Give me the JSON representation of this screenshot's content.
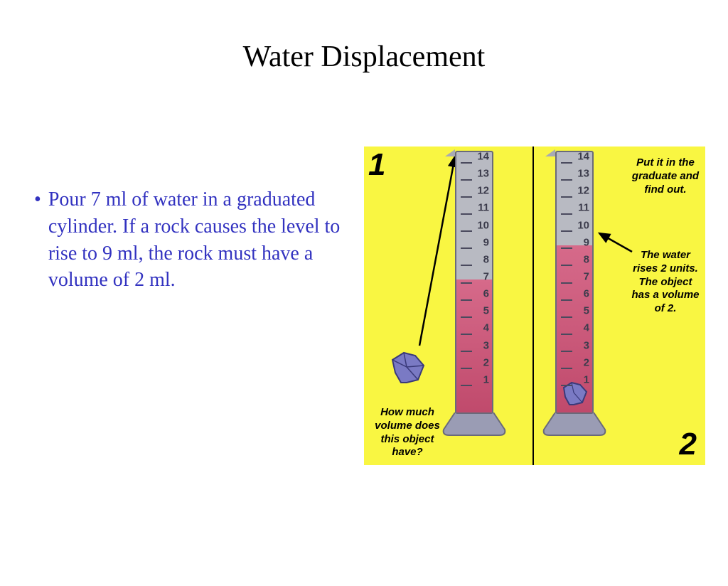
{
  "title": "Water Displacement",
  "bullet": "Pour 7 ml of water in a graduated cylinder.  If a rock causes the level to rise to 9 ml, the rock must have a volume of 2 ml.",
  "diagram": {
    "background_color": "#f9f642",
    "divider_color": "#000000",
    "cylinder": {
      "fill_color": "#b8bac2",
      "border_color": "#6a6a7a",
      "water_color_top": "#d66a8a",
      "water_color_bottom": "#c04a6c",
      "base_color": "#9a9cb4",
      "tick_color": "#4a4a5e",
      "tick_label_color": "#3c3c4c",
      "ticks": [
        14,
        13,
        12,
        11,
        10,
        9,
        8,
        7,
        6,
        5,
        4,
        3,
        2,
        1
      ],
      "tick_fontsize": 15
    },
    "rock": {
      "fill_color": "#7a7ac4",
      "stroke_color": "#3a3a7a"
    },
    "arrow_color": "#000000",
    "panel1": {
      "number": "1",
      "initial_water_level": 7,
      "caption": "How much volume does this object have?"
    },
    "panel2": {
      "number": "2",
      "final_water_level": 9,
      "caption_top": "Put it in the graduate and find out.",
      "caption_result": "The water rises 2 units. The object has a volume of 2."
    },
    "text_style": {
      "font_family": "Arial",
      "font_size": 15,
      "font_weight": "bold",
      "font_style": "italic",
      "color": "#000000"
    },
    "number_style": {
      "font_family": "Arial",
      "font_size": 44,
      "font_weight": 900,
      "font_style": "italic",
      "color": "#000000"
    }
  },
  "colors": {
    "title_color": "#000000",
    "body_text_color": "#3232c0",
    "page_background": "#ffffff"
  },
  "typography": {
    "title_fontsize": 42,
    "body_fontsize": 28,
    "title_font": "Times New Roman",
    "body_font": "Times New Roman"
  }
}
